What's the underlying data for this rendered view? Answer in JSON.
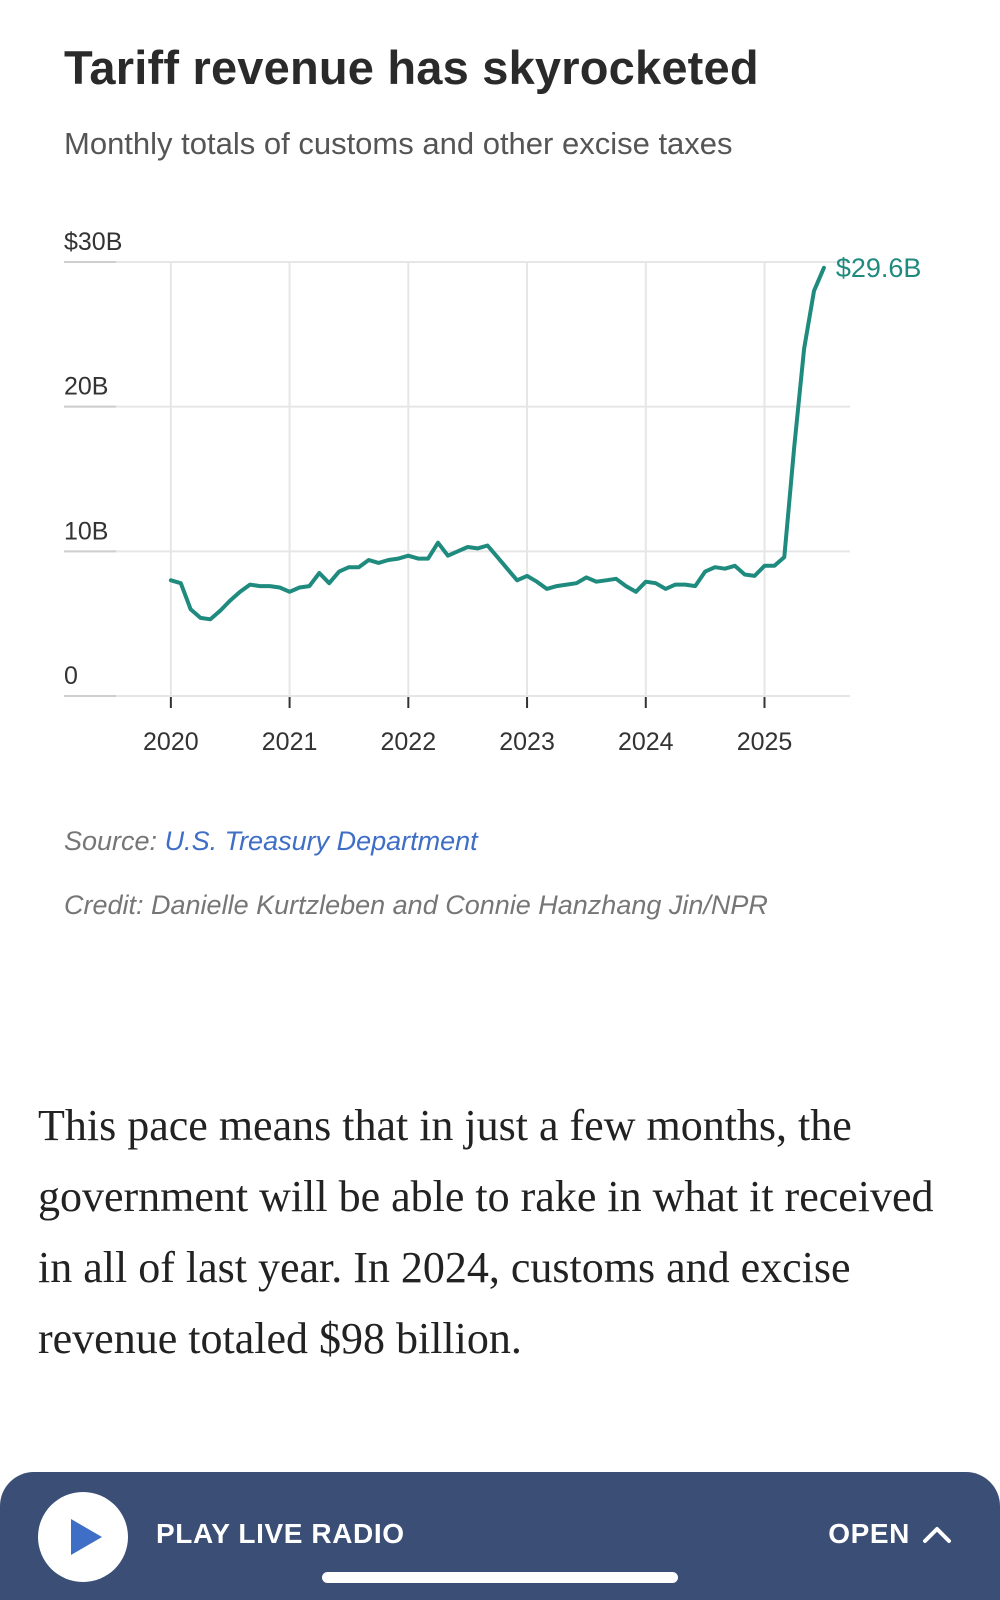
{
  "chart_data": {
    "type": "line",
    "title": "Tariff revenue has skyrocketed",
    "subtitle": "Monthly totals of customs and other excise taxes",
    "xlabel": "",
    "ylabel": "",
    "xlim": [
      2019.1,
      2025.72
    ],
    "ylim": [
      0,
      30
    ],
    "grid": true,
    "y_ticks": [
      {
        "value": 0,
        "label": "0"
      },
      {
        "value": 10,
        "label": "10B"
      },
      {
        "value": 20,
        "label": "20B"
      },
      {
        "value": 30,
        "label": "$30B"
      }
    ],
    "x_ticks": [
      {
        "value": 2020,
        "label": "2020"
      },
      {
        "value": 2021,
        "label": "2021"
      },
      {
        "value": 2022,
        "label": "2022"
      },
      {
        "value": 2023,
        "label": "2023"
      },
      {
        "value": 2024,
        "label": "2024"
      },
      {
        "value": 2025,
        "label": "2025"
      }
    ],
    "series": [
      {
        "name": "Customs and other excise taxes",
        "color": "#1f8a7e",
        "x_start": 2020.0,
        "x_step": 0.08333,
        "values": [
          8.0,
          7.8,
          6.0,
          5.4,
          5.3,
          5.9,
          6.6,
          7.2,
          7.7,
          7.6,
          7.6,
          7.5,
          7.2,
          7.5,
          7.6,
          8.5,
          7.8,
          8.6,
          8.9,
          8.9,
          9.4,
          9.2,
          9.4,
          9.5,
          9.7,
          9.5,
          9.5,
          10.6,
          9.7,
          10.0,
          10.3,
          10.2,
          10.4,
          9.6,
          8.8,
          8.0,
          8.3,
          7.9,
          7.4,
          7.6,
          7.7,
          7.8,
          8.2,
          7.9,
          8.0,
          8.1,
          7.6,
          7.2,
          7.9,
          7.8,
          7.4,
          7.7,
          7.7,
          7.6,
          8.6,
          8.9,
          8.8,
          9.0,
          8.4,
          8.3,
          9.0,
          9.0,
          9.6,
          17.2,
          24.0,
          28.0,
          29.6
        ]
      }
    ],
    "end_label": "$29.6B"
  },
  "source": {
    "prefix": "Source: ",
    "link_text": "U.S. Treasury Department"
  },
  "credit": "Credit: Danielle Kurtzleben and Connie Hanzhang Jin/NPR",
  "article": {
    "paragraph": "This pace means that in just a few months, the government will be able to rake in what it received in all of last year. In 2024, customs and excise revenue totaled $98 billion."
  },
  "radio_bar": {
    "play_label": "PLAY LIVE RADIO",
    "open_label": "OPEN",
    "background": "#3a4e76",
    "play_icon_color": "#3f6ec6"
  },
  "icons": {
    "play": "play-icon",
    "chevron": "chevron-up-icon"
  }
}
